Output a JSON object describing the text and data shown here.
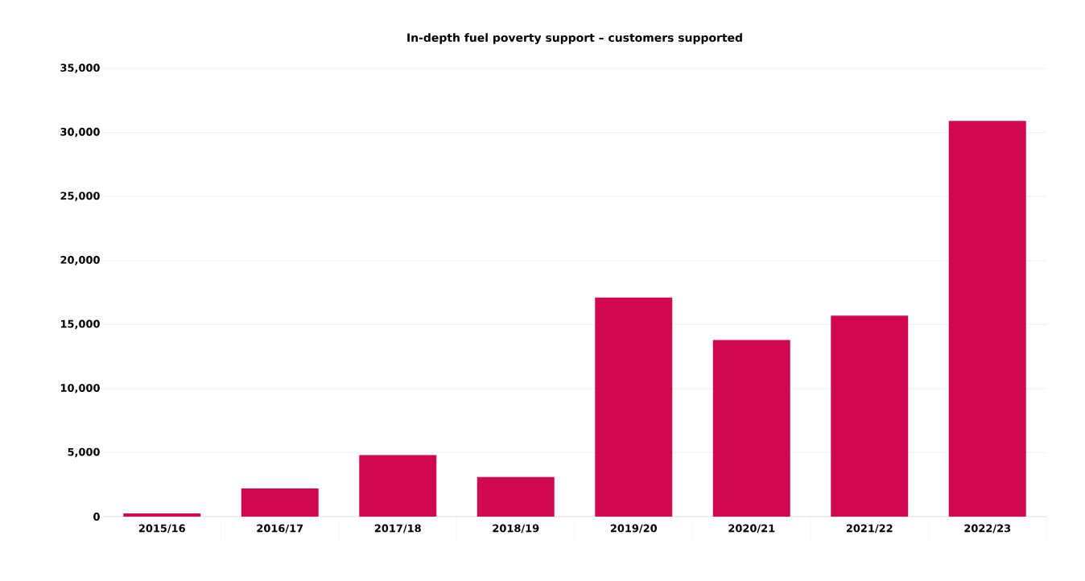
{
  "chart_data": {
    "type": "bar",
    "title": "In-depth fuel poverty support – customers supported",
    "categories": [
      "2015/16",
      "2016/17",
      "2017/18",
      "2018/19",
      "2019/20",
      "2020/21",
      "2021/22",
      "2022/23"
    ],
    "values": [
      250,
      2200,
      4800,
      3100,
      17100,
      13800,
      15700,
      30900
    ],
    "color": "#d1074f",
    "ylim": [
      0,
      35000
    ],
    "yticks": [
      {
        "value": 0,
        "label": "0"
      },
      {
        "value": 5000,
        "label": "5,000"
      },
      {
        "value": 10000,
        "label": "10,000"
      },
      {
        "value": 15000,
        "label": "15,000"
      },
      {
        "value": 20000,
        "label": "20,000"
      },
      {
        "value": 25000,
        "label": "25,000"
      },
      {
        "value": 30000,
        "label": "30,000"
      },
      {
        "value": 35000,
        "label": "35,000"
      }
    ],
    "grid": "y"
  }
}
